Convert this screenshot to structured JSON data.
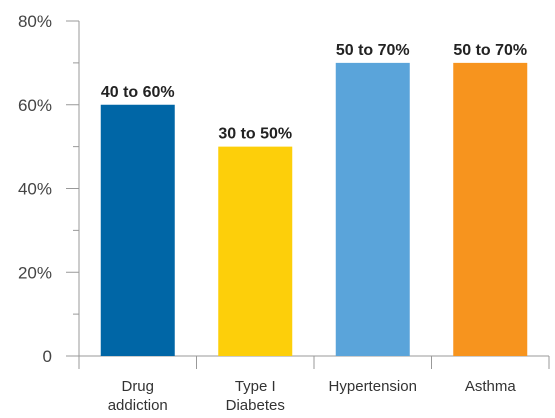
{
  "chart_data": {
    "type": "bar",
    "categories": [
      [
        "Drug",
        "addiction"
      ],
      [
        "Type I",
        "Diabetes"
      ],
      [
        "Hypertension"
      ],
      [
        "Asthma"
      ]
    ],
    "values": [
      60,
      50,
      70,
      70
    ],
    "data_labels": [
      "40 to 60%",
      "30 to 50%",
      "50 to 70%",
      "50 to 70%"
    ],
    "colors": [
      "#0066a6",
      "#fdcf0a",
      "#5aa4da",
      "#f7941e"
    ],
    "yticks": [
      {
        "value": 0,
        "label": "0"
      },
      {
        "value": 20,
        "label": "20%"
      },
      {
        "value": 40,
        "label": "40%"
      },
      {
        "value": 60,
        "label": "60%"
      },
      {
        "value": 80,
        "label": "80%"
      }
    ],
    "ylim": [
      0,
      80
    ],
    "grid": false,
    "title": "",
    "xlabel": "",
    "ylabel": ""
  }
}
